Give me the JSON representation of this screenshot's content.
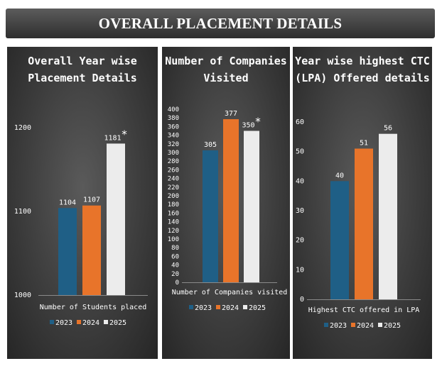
{
  "header": {
    "title": "OVERALL PLACEMENT DETAILS"
  },
  "colors": {
    "y2023": "#1f5f86",
    "y2024": "#e8742a",
    "y2025": "#ececec",
    "axis": "#8a8a8a"
  },
  "panels": [
    {
      "title": "Overall Year wise\nPlacement Details"
    },
    {
      "title": "Number of Companies\nVisited"
    },
    {
      "title": "Year wise highest CTC\n(LPA) Offered details"
    }
  ],
  "chart_data": [
    {
      "type": "bar",
      "categories": [
        "Number of Students placed"
      ],
      "series": [
        {
          "name": "2023",
          "values": [
            1104
          ],
          "label": "1104"
        },
        {
          "name": "2024",
          "values": [
            1107
          ],
          "label": "1107"
        },
        {
          "name": "2025",
          "values": [
            1181
          ],
          "label": "1181*"
        }
      ],
      "title": "Overall Year wise Placement Details",
      "xlabel": "Number of Students placed",
      "ylim": [
        1000,
        1200
      ],
      "yticks": [
        1000,
        1100,
        1200
      ],
      "legend": "bottom"
    },
    {
      "type": "bar",
      "categories": [
        "Number of Companies visited"
      ],
      "series": [
        {
          "name": "2023",
          "values": [
            305
          ],
          "label": "305"
        },
        {
          "name": "2024",
          "values": [
            377
          ],
          "label": "377"
        },
        {
          "name": "2025",
          "values": [
            350
          ],
          "label": "350*"
        }
      ],
      "title": "Number of Companies Visited",
      "xlabel": "Number of Companies visited",
      "ylim": [
        0,
        400
      ],
      "yticks": [
        0,
        20,
        40,
        60,
        80,
        100,
        120,
        140,
        160,
        180,
        200,
        220,
        240,
        260,
        280,
        300,
        320,
        340,
        360,
        380,
        400
      ],
      "legend": "bottom"
    },
    {
      "type": "bar",
      "categories": [
        "Highest CTC offered in LPA"
      ],
      "series": [
        {
          "name": "2023",
          "values": [
            40
          ],
          "label": "40"
        },
        {
          "name": "2024",
          "values": [
            51
          ],
          "label": "51"
        },
        {
          "name": "2025",
          "values": [
            56
          ],
          "label": "56"
        }
      ],
      "title": "Year wise highest CTC (LPA) Offered details",
      "xlabel": "Highest CTC offered in LPA",
      "ylim": [
        0,
        60
      ],
      "yticks": [
        0,
        10,
        20,
        30,
        40,
        50,
        60
      ],
      "legend": "bottom"
    }
  ]
}
